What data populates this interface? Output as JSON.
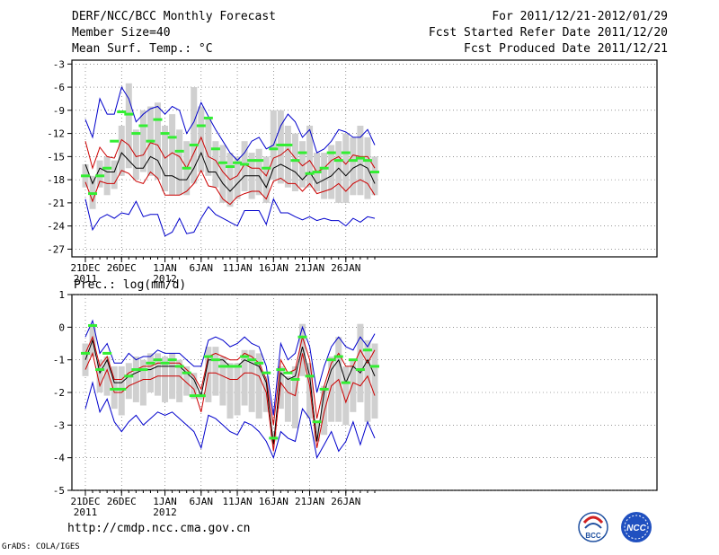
{
  "header": {
    "title": "DERF/NCC/BCC Monthly Forecast",
    "member_size": "Member Size=40",
    "variable": "Mean Surf. Temp.: °C",
    "period": "For 2011/12/21-2012/01/29",
    "refer_date": "Fcst Started Refer Date 2011/12/20",
    "produced_date": "Fcst Produced Date 2011/12/21"
  },
  "footer": {
    "url": "http://cmdp.ncc.cma.gov.cn",
    "credit": "GrADS: COLA/IGES",
    "logo_left": "BCC",
    "logo_right": "NCC"
  },
  "colors": {
    "max_line": "#0000cc",
    "min_line": "#0000cc",
    "pct_line": "#cc0000",
    "mean_line": "#000000",
    "box": "#d0d0d0",
    "obs": "#33ee33"
  },
  "chart_data": [
    {
      "type": "line",
      "title": "Mean Surf. Temp.: °C",
      "ylim": [
        -28,
        -2.5
      ],
      "yticks": [
        -3,
        -6,
        -9,
        -12,
        -15,
        -18,
        -21,
        -24,
        -27
      ],
      "xticks": [
        {
          "day": 0,
          "label": "21DEC",
          "sub": "2011"
        },
        {
          "day": 5,
          "label": "26DEC",
          "sub": ""
        },
        {
          "day": 11,
          "label": "1JAN",
          "sub": "2012"
        },
        {
          "day": 16,
          "label": "6JAN",
          "sub": ""
        },
        {
          "day": 21,
          "label": "11JAN",
          "sub": ""
        },
        {
          "day": 26,
          "label": "16JAN",
          "sub": ""
        },
        {
          "day": 31,
          "label": "21JAN",
          "sub": ""
        },
        {
          "day": 36,
          "label": "26JAN",
          "sub": ""
        }
      ],
      "series": [
        {
          "name": "max",
          "values": [
            -10.2,
            -12.5,
            -7.5,
            -9.5,
            -9.5,
            -6,
            -7.5,
            -10.5,
            -9.5,
            -8.8,
            -8.5,
            -9.5,
            -8.5,
            -9,
            -12,
            -10.5,
            -8,
            -9.8,
            -11.5,
            -13,
            -14.5,
            -15.5,
            -14.5,
            -13,
            -12.5,
            -14,
            -13.5,
            -11,
            -9.5,
            -10.5,
            -12.5,
            -11.5,
            -14.5,
            -14,
            -13,
            -11.5,
            -11.8,
            -12.5,
            -12.5,
            -11.5,
            -13.5
          ]
        },
        {
          "name": "p75",
          "values": [
            -13,
            -16.5,
            -13.8,
            -15,
            -15.2,
            -12.8,
            -13.5,
            -15,
            -14.8,
            -13.2,
            -13.5,
            -15.2,
            -14.5,
            -15,
            -16.5,
            -14.5,
            -12.5,
            -15,
            -15.5,
            -17,
            -18,
            -17.5,
            -16,
            -16.5,
            -16.5,
            -17.5,
            -15.2,
            -14.8,
            -14,
            -15.2,
            -16.2,
            -15.5,
            -17,
            -16.5,
            -15.5,
            -15,
            -16,
            -14.8,
            -15,
            -15,
            -16.5
          ]
        },
        {
          "name": "mean",
          "values": [
            -16,
            -18.5,
            -16.5,
            -17,
            -17,
            -14.5,
            -15.5,
            -16.5,
            -16.5,
            -15,
            -15.5,
            -17.5,
            -17.5,
            -18,
            -18,
            -16.5,
            -14.5,
            -17,
            -17,
            -18.5,
            -19.5,
            -18.5,
            -17.5,
            -17.5,
            -17.5,
            -19,
            -16.5,
            -16,
            -16.5,
            -17,
            -18,
            -17,
            -18.5,
            -18,
            -17.5,
            -16.5,
            -17.5,
            -16.5,
            -16,
            -16.5,
            -18.5
          ]
        },
        {
          "name": "p25",
          "values": [
            -18.3,
            -20.8,
            -18.2,
            -18.5,
            -18.5,
            -16.8,
            -17.2,
            -18.2,
            -18.5,
            -17,
            -17.8,
            -20,
            -20,
            -20,
            -19.5,
            -18.5,
            -16.8,
            -18.8,
            -19,
            -20.5,
            -21.2,
            -20.2,
            -19.8,
            -19.5,
            -19.5,
            -20.5,
            -18.2,
            -17.8,
            -18.5,
            -18.5,
            -19.5,
            -18.5,
            -19.8,
            -19.5,
            -19.2,
            -18.5,
            -19.5,
            -18.5,
            -18,
            -18.5,
            -20
          ]
        },
        {
          "name": "min",
          "values": [
            -20.5,
            -24.5,
            -23,
            -22.5,
            -23,
            -22.3,
            -22.5,
            -20.8,
            -22.8,
            -22.5,
            -22.5,
            -25.3,
            -24.8,
            -23,
            -25,
            -24.8,
            -23,
            -21.5,
            -22.5,
            -23,
            -23.5,
            -24,
            -22,
            -22,
            -22,
            -23.8,
            -20.5,
            -22.3,
            -22.3,
            -22.8,
            -23.2,
            -22.8,
            -23.3,
            -23,
            -23.3,
            -23.3,
            -24,
            -23,
            -23.5,
            -22.8,
            -23
          ]
        }
      ],
      "boxes": [
        [
          -16,
          -19
        ],
        [
          -17.5,
          -21.8
        ],
        [
          -15.5,
          -19
        ],
        [
          -15,
          -20
        ],
        [
          -15.5,
          -19.2
        ],
        [
          -11,
          -17.5
        ],
        [
          -5.5,
          -16.5
        ],
        [
          -11.5,
          -18
        ],
        [
          -9,
          -17
        ],
        [
          -8.5,
          -17.5
        ],
        [
          -8,
          -18
        ],
        [
          -11,
          -19.5
        ],
        [
          -9.5,
          -20
        ],
        [
          -11.5,
          -20
        ],
        [
          -13,
          -20
        ],
        [
          -6,
          -18.5
        ],
        [
          -8.5,
          -17
        ],
        [
          -10,
          -17.5
        ],
        [
          -13,
          -19
        ],
        [
          -13.5,
          -21
        ],
        [
          -14.5,
          -21.5
        ],
        [
          -15,
          -20.5
        ],
        [
          -13,
          -19.5
        ],
        [
          -14.5,
          -20.5
        ],
        [
          -14,
          -20
        ],
        [
          -15,
          -21
        ],
        [
          -9,
          -18
        ],
        [
          -9,
          -18.5
        ],
        [
          -11,
          -19
        ],
        [
          -12,
          -19.5
        ],
        [
          -13,
          -19
        ],
        [
          -11,
          -19
        ],
        [
          -14.5,
          -19.5
        ],
        [
          -14.5,
          -20.5
        ],
        [
          -13.5,
          -20.5
        ],
        [
          -13,
          -21
        ],
        [
          -12,
          -21
        ],
        [
          -12.5,
          -20
        ],
        [
          -11,
          -20
        ],
        [
          -12.5,
          -20.5
        ],
        [
          -15,
          -20
        ]
      ],
      "obs": [
        -17.5,
        -19.8,
        -17.5,
        -16.5,
        -13,
        -9.2,
        -9.5,
        -12,
        -11,
        -13,
        -10.2,
        -12,
        -12.5,
        -14.3,
        -16.5,
        -13.5,
        -11,
        -10,
        -14,
        -15.8,
        -16.3,
        -15.8,
        -16,
        -15.5,
        -15.5,
        -16.5,
        -14,
        -13.5,
        -13.5,
        -15.5,
        -14.5,
        -17.2,
        -17,
        -16.5,
        -14.5,
        -15.5,
        -14.5,
        -15.5,
        -15.2,
        -15.5,
        -17
      ]
    },
    {
      "type": "line",
      "title": "Prec.: log(mm/d)",
      "ylim": [
        -5,
        1
      ],
      "yticks": [
        1,
        0,
        -1,
        -2,
        -3,
        -4,
        -5
      ],
      "xticks": [
        {
          "day": 0,
          "label": "21DEC",
          "sub": "2011"
        },
        {
          "day": 5,
          "label": "26DEC",
          "sub": ""
        },
        {
          "day": 11,
          "label": "1JAN",
          "sub": "2012"
        },
        {
          "day": 16,
          "label": "6JAN",
          "sub": ""
        },
        {
          "day": 21,
          "label": "11JAN",
          "sub": ""
        },
        {
          "day": 26,
          "label": "16JAN",
          "sub": ""
        },
        {
          "day": 31,
          "label": "21JAN",
          "sub": ""
        },
        {
          "day": 36,
          "label": "26JAN",
          "sub": ""
        }
      ],
      "series": [
        {
          "name": "max",
          "values": [
            -0.3,
            0.2,
            -0.8,
            -0.5,
            -1.1,
            -1.1,
            -0.8,
            -1,
            -0.9,
            -0.9,
            -0.7,
            -0.8,
            -0.8,
            -0.8,
            -1,
            -1.2,
            -1.2,
            -0.4,
            -0.3,
            -0.4,
            -0.6,
            -0.5,
            -0.3,
            -0.5,
            -0.6,
            -1.2,
            -2.7,
            -0.5,
            -1,
            -0.8,
            0,
            -0.6,
            -2,
            -1.2,
            -0.6,
            -0.3,
            -0.6,
            -0.7,
            -0.3,
            -0.6,
            -0.2
          ]
        },
        {
          "name": "p75",
          "values": [
            -0.8,
            -0.3,
            -1.2,
            -0.9,
            -1.6,
            -1.6,
            -1.4,
            -1.3,
            -1.2,
            -1.2,
            -1.1,
            -1.1,
            -1.1,
            -1.1,
            -1.3,
            -1.5,
            -1.9,
            -0.9,
            -0.8,
            -0.9,
            -1,
            -1,
            -0.8,
            -0.9,
            -1.1,
            -1.6,
            -3,
            -1,
            -1.4,
            -1.3,
            -0.3,
            -1,
            -2.8,
            -1.8,
            -1.1,
            -0.8,
            -1.2,
            -1.2,
            -0.7,
            -1.1,
            -0.7
          ]
        },
        {
          "name": "mean",
          "values": [
            -1,
            -0.4,
            -1.4,
            -1,
            -1.7,
            -1.7,
            -1.5,
            -1.4,
            -1.3,
            -1.3,
            -1.2,
            -1.2,
            -1.2,
            -1.2,
            -1.4,
            -1.6,
            -2.1,
            -1,
            -1,
            -1,
            -1.2,
            -1.2,
            -1,
            -1.1,
            -1.2,
            -1.7,
            -3.6,
            -1.4,
            -1.6,
            -1.5,
            -0.6,
            -1.5,
            -3.5,
            -2,
            -1.3,
            -1,
            -1.7,
            -1.2,
            -1.4,
            -1,
            -1.5
          ]
        },
        {
          "name": "p25",
          "values": [
            -1.3,
            -0.8,
            -1.8,
            -1.3,
            -2,
            -2,
            -1.8,
            -1.7,
            -1.6,
            -1.6,
            -1.5,
            -1.5,
            -1.5,
            -1.5,
            -1.7,
            -1.9,
            -2.6,
            -1.4,
            -1.4,
            -1.5,
            -1.6,
            -1.6,
            -1.4,
            -1.4,
            -1.5,
            -2,
            -3.8,
            -1.7,
            -2,
            -2.1,
            -0.8,
            -1.8,
            -3.7,
            -2.6,
            -1.8,
            -1.6,
            -2.3,
            -1.7,
            -1.8,
            -1.5,
            -2.1
          ]
        },
        {
          "name": "min",
          "values": [
            -2.5,
            -1.7,
            -2.6,
            -2.2,
            -2.9,
            -3.2,
            -2.9,
            -2.7,
            -3,
            -2.8,
            -2.6,
            -2.7,
            -2.6,
            -2.8,
            -3,
            -3.2,
            -3.7,
            -2.7,
            -2.8,
            -3,
            -3.2,
            -3.3,
            -2.9,
            -3,
            -3.2,
            -3.5,
            -4,
            -3.2,
            -3.4,
            -3.5,
            -2.5,
            -2.8,
            -4,
            -3.6,
            -3.2,
            -3.8,
            -3.5,
            -2.9,
            -3.6,
            -2.9,
            -3.4
          ]
        }
      ],
      "boxes": [
        [
          -0.5,
          -1.5
        ],
        [
          0.1,
          -0.9
        ],
        [
          -1,
          -2
        ],
        [
          -0.9,
          -2.1
        ],
        [
          -1.2,
          -2.5
        ],
        [
          -1.2,
          -2.7
        ],
        [
          -1.1,
          -2.2
        ],
        [
          -0.9,
          -2.3
        ],
        [
          -1,
          -2.4
        ],
        [
          -0.8,
          -2
        ],
        [
          -0.8,
          -2.1
        ],
        [
          -0.9,
          -2.3
        ],
        [
          -0.8,
          -2.2
        ],
        [
          -1,
          -2.3
        ],
        [
          -1.2,
          -2.1
        ],
        [
          -1.4,
          -2.2
        ],
        [
          -2,
          -2.2
        ],
        [
          -0.6,
          -2.3
        ],
        [
          -0.6,
          -2.1
        ],
        [
          -0.9,
          -2.4
        ],
        [
          -1.1,
          -2.8
        ],
        [
          -1.1,
          -2.7
        ],
        [
          -0.7,
          -2.4
        ],
        [
          -0.7,
          -2.6
        ],
        [
          -0.8,
          -2.8
        ],
        [
          -1.5,
          -2.6
        ],
        [
          -3.2,
          -3.5
        ],
        [
          -1.2,
          -2.5
        ],
        [
          -1.5,
          -2.9
        ],
        [
          -1.2,
          -3.1
        ],
        [
          0.1,
          -1.5
        ],
        [
          -1.1,
          -2.8
        ],
        [
          -2.9,
          -3.5
        ],
        [
          -1.8,
          -3.3
        ],
        [
          -0.9,
          -2.9
        ],
        [
          -0.3,
          -2.9
        ],
        [
          -1.2,
          -3
        ],
        [
          -1,
          -2.6
        ],
        [
          0.1,
          -2.3
        ],
        [
          -0.4,
          -2.9
        ],
        [
          -0.5,
          -2.8
        ]
      ],
      "obs": [
        -0.8,
        0.05,
        -1.3,
        -0.8,
        -1.9,
        -1.9,
        -1.5,
        -1.3,
        -1.3,
        -1.1,
        -1,
        -1.1,
        -1,
        -1.2,
        -1.4,
        -2.1,
        -2.1,
        -0.9,
        -1,
        -1.2,
        -1.2,
        -1.2,
        -0.9,
        -1,
        -1.1,
        -1.4,
        -3.4,
        -1.3,
        -1.4,
        -1.6,
        -0.3,
        -1.5,
        -2.9,
        -1.9,
        -1,
        -0.9,
        -1.7,
        -1,
        -1.3,
        -0.7,
        -1.2
      ]
    }
  ]
}
